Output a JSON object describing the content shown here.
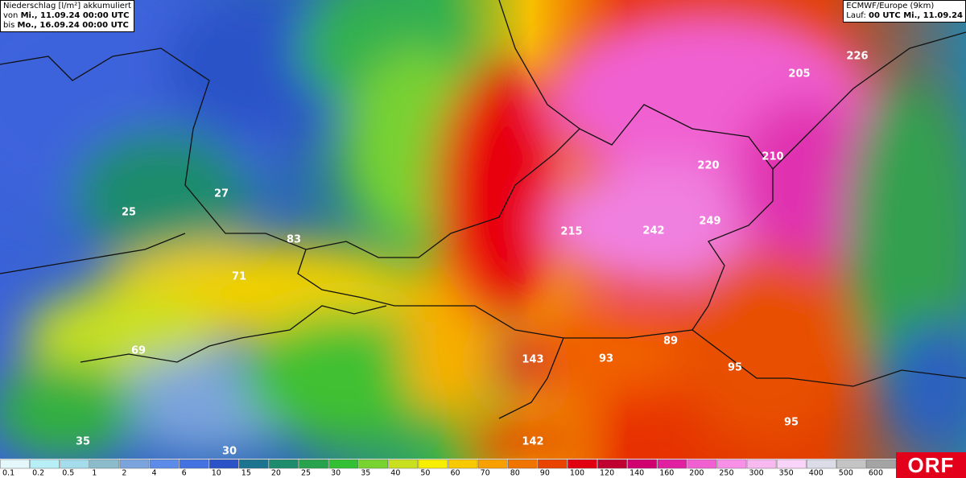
{
  "header": {
    "title": "Niederschlag [l/m²] akkumuliert",
    "from_prefix": "von",
    "from": "Mi., 11.09.24 00:00 UTC",
    "to_prefix": "bis",
    "to": "Mo., 16.09.24 00:00 UTC"
  },
  "model": {
    "name": "ECMWF/Europe (9km)",
    "run_prefix": "Lauf:",
    "run": "00 UTC Mi., 11.09.24"
  },
  "map_labels": [
    "226",
    "205",
    "210",
    "220",
    "249",
    "242",
    "215",
    "27",
    "25",
    "83",
    "71",
    "69",
    "143",
    "93",
    "89",
    "95",
    "95",
    "142",
    "35",
    "30"
  ],
  "legend": {
    "values": [
      0.1,
      0.2,
      0.5,
      1,
      2,
      4,
      6,
      10,
      15,
      20,
      25,
      30,
      35,
      40,
      50,
      60,
      70,
      80,
      90,
      100,
      120,
      140,
      160,
      200,
      250,
      300,
      350,
      400,
      500,
      600
    ],
    "colors": [
      "#e4f8fc",
      "#b8eef6",
      "#a4dcec",
      "#8cbccc",
      "#7ca4dc",
      "#5c8ce8",
      "#4472e0",
      "#2c52c8",
      "#1c7490",
      "#1e8c6c",
      "#28a24c",
      "#34c034",
      "#78d230",
      "#c8e020",
      "#f8ee00",
      "#f8c800",
      "#f8a000",
      "#f07400",
      "#e84400",
      "#e00010",
      "#c00030",
      "#d00070",
      "#e020a0",
      "#f060d0",
      "#f890e8",
      "#f8b8f0",
      "#f8d4f8",
      "#dcdce8",
      "#c4c4c4",
      "#a4a4a4"
    ]
  },
  "logo": "ORF"
}
